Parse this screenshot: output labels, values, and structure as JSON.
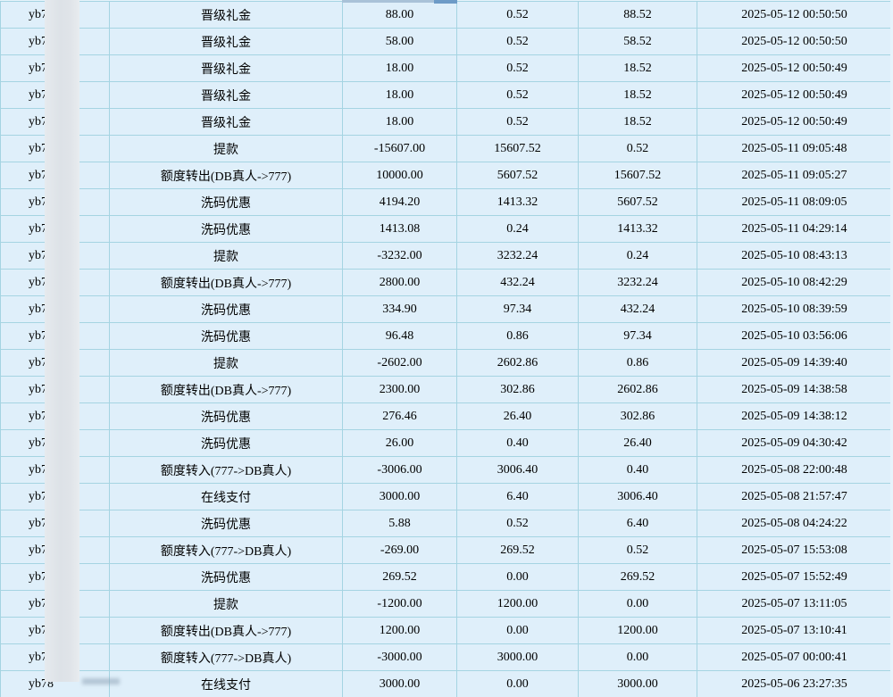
{
  "colors": {
    "page_background": "#e6f3fb",
    "row_background": "#dfeffa",
    "grid_line": "#a5d4e2",
    "text": "#000000",
    "privacy_blur": "#e0e4e9",
    "header_remnant_band": "#a9c2d8",
    "header_remnant_highlight": "#6d9bc7"
  },
  "table": {
    "rows": [
      {
        "username": "yb78",
        "type": "晋级礼金",
        "amount": "88.00",
        "balance_before": "0.52",
        "balance_after": "88.52",
        "time": "2025-05-12 00:50:50"
      },
      {
        "username": "yb78",
        "type": "晋级礼金",
        "amount": "58.00",
        "balance_before": "0.52",
        "balance_after": "58.52",
        "time": "2025-05-12 00:50:50"
      },
      {
        "username": "yb78",
        "type": "晋级礼金",
        "amount": "18.00",
        "balance_before": "0.52",
        "balance_after": "18.52",
        "time": "2025-05-12 00:50:49"
      },
      {
        "username": "yb78",
        "type": "晋级礼金",
        "amount": "18.00",
        "balance_before": "0.52",
        "balance_after": "18.52",
        "time": "2025-05-12 00:50:49"
      },
      {
        "username": "yb78",
        "type": "晋级礼金",
        "amount": "18.00",
        "balance_before": "0.52",
        "balance_after": "18.52",
        "time": "2025-05-12 00:50:49"
      },
      {
        "username": "yb78",
        "type": "提款",
        "amount": "-15607.00",
        "balance_before": "15607.52",
        "balance_after": "0.52",
        "time": "2025-05-11 09:05:48"
      },
      {
        "username": "yb78",
        "type": "额度转出(DB真人->777)",
        "amount": "10000.00",
        "balance_before": "5607.52",
        "balance_after": "15607.52",
        "time": "2025-05-11 09:05:27"
      },
      {
        "username": "yb78",
        "type": "洗码优惠",
        "amount": "4194.20",
        "balance_before": "1413.32",
        "balance_after": "5607.52",
        "time": "2025-05-11 08:09:05"
      },
      {
        "username": "yb78",
        "type": "洗码优惠",
        "amount": "1413.08",
        "balance_before": "0.24",
        "balance_after": "1413.32",
        "time": "2025-05-11 04:29:14"
      },
      {
        "username": "yb78",
        "type": "提款",
        "amount": "-3232.00",
        "balance_before": "3232.24",
        "balance_after": "0.24",
        "time": "2025-05-10 08:43:13"
      },
      {
        "username": "yb78",
        "type": "额度转出(DB真人->777)",
        "amount": "2800.00",
        "balance_before": "432.24",
        "balance_after": "3232.24",
        "time": "2025-05-10 08:42:29"
      },
      {
        "username": "yb78",
        "type": "洗码优惠",
        "amount": "334.90",
        "balance_before": "97.34",
        "balance_after": "432.24",
        "time": "2025-05-10 08:39:59"
      },
      {
        "username": "yb78",
        "type": "洗码优惠",
        "amount": "96.48",
        "balance_before": "0.86",
        "balance_after": "97.34",
        "time": "2025-05-10 03:56:06"
      },
      {
        "username": "yb78",
        "type": "提款",
        "amount": "-2602.00",
        "balance_before": "2602.86",
        "balance_after": "0.86",
        "time": "2025-05-09 14:39:40"
      },
      {
        "username": "yb78",
        "type": "额度转出(DB真人->777)",
        "amount": "2300.00",
        "balance_before": "302.86",
        "balance_after": "2602.86",
        "time": "2025-05-09 14:38:58"
      },
      {
        "username": "yb78",
        "type": "洗码优惠",
        "amount": "276.46",
        "balance_before": "26.40",
        "balance_after": "302.86",
        "time": "2025-05-09 14:38:12"
      },
      {
        "username": "yb78",
        "type": "洗码优惠",
        "amount": "26.00",
        "balance_before": "0.40",
        "balance_after": "26.40",
        "time": "2025-05-09 04:30:42"
      },
      {
        "username": "yb78",
        "type": "额度转入(777->DB真人)",
        "amount": "-3006.00",
        "balance_before": "3006.40",
        "balance_after": "0.40",
        "time": "2025-05-08 22:00:48"
      },
      {
        "username": "yb78",
        "type": "在线支付",
        "amount": "3000.00",
        "balance_before": "6.40",
        "balance_after": "3006.40",
        "time": "2025-05-08 21:57:47"
      },
      {
        "username": "yb78",
        "type": "洗码优惠",
        "amount": "5.88",
        "balance_before": "0.52",
        "balance_after": "6.40",
        "time": "2025-05-08 04:24:22"
      },
      {
        "username": "yb78",
        "type": "额度转入(777->DB真人)",
        "amount": "-269.00",
        "balance_before": "269.52",
        "balance_after": "0.52",
        "time": "2025-05-07 15:53:08"
      },
      {
        "username": "yb78",
        "type": "洗码优惠",
        "amount": "269.52",
        "balance_before": "0.00",
        "balance_after": "269.52",
        "time": "2025-05-07 15:52:49"
      },
      {
        "username": "yb78",
        "type": "提款",
        "amount": "-1200.00",
        "balance_before": "1200.00",
        "balance_after": "0.00",
        "time": "2025-05-07 13:11:05"
      },
      {
        "username": "yb78",
        "type": "额度转出(DB真人->777)",
        "amount": "1200.00",
        "balance_before": "0.00",
        "balance_after": "1200.00",
        "time": "2025-05-07 13:10:41"
      },
      {
        "username": "yb78",
        "type": "额度转入(777->DB真人)",
        "amount": "-3000.00",
        "balance_before": "3000.00",
        "balance_after": "0.00",
        "time": "2025-05-07 00:00:41"
      },
      {
        "username": "yb78",
        "type": "在线支付",
        "amount": "3000.00",
        "balance_before": "0.00",
        "balance_after": "3000.00",
        "time": "2025-05-06 23:27:35"
      }
    ]
  }
}
